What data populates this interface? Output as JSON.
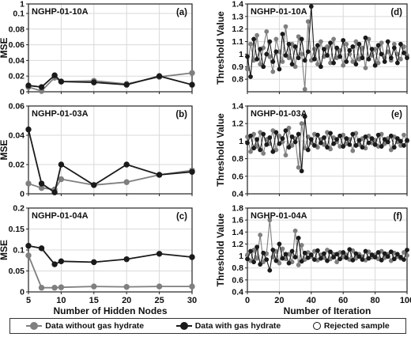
{
  "colors": {
    "without": "#7f7f7f",
    "with": "#1a1a1a",
    "axis": "#222222",
    "grid": "#d9d9d9"
  },
  "legend": {
    "without_label": "Data without gas hydrate",
    "with_label": "Data with gas hydrate",
    "rejected_label": "Rejected sample"
  },
  "chart_data": [
    {
      "id": "a",
      "type": "line",
      "tag": "(a)",
      "site": "NGHP-01-10A",
      "ylabel": "MSE",
      "xlabel": "",
      "xlim": [
        5,
        30
      ],
      "ylim": [
        0,
        1
      ],
      "xticks": [
        5,
        10,
        15,
        20,
        25,
        30
      ],
      "xticklabels": [],
      "yticks": [
        0,
        0.02,
        0.04,
        0.06,
        0.08,
        0.1,
        1
      ],
      "yticklabels": [
        "0",
        "0.02",
        "0.04",
        "0.06",
        "0.08",
        "0.1",
        "1"
      ],
      "grid": true,
      "x": [
        5,
        7,
        9,
        10,
        15,
        20,
        25,
        30
      ],
      "series": [
        {
          "key": "without",
          "values": [
            0.006,
            0.001,
            0.018,
            0.013,
            0.014,
            0.01,
            0.019,
            0.024
          ]
        },
        {
          "key": "with",
          "values": [
            0.008,
            0.006,
            0.021,
            0.013,
            0.012,
            0.009,
            0.02,
            0.009
          ]
        }
      ]
    },
    {
      "id": "b",
      "type": "line",
      "tag": "(b)",
      "site": "NGHP-01-03A",
      "ylabel": "MSE",
      "xlabel": "",
      "xlim": [
        5,
        30
      ],
      "ylim": [
        0,
        0.06
      ],
      "xticks": [
        5,
        10,
        15,
        20,
        25,
        30
      ],
      "xticklabels": [],
      "yticks": [
        0,
        0.02,
        0.04,
        0.06
      ],
      "yticklabels": [
        "0",
        "0.02",
        "0.04",
        "0.06"
      ],
      "grid": true,
      "x": [
        5,
        7,
        9,
        10,
        15,
        20,
        25,
        30
      ],
      "series": [
        {
          "key": "without",
          "values": [
            0.007,
            0.004,
            0.003,
            0.01,
            0.006,
            0.008,
            0.013,
            0.016
          ]
        },
        {
          "key": "with",
          "values": [
            0.044,
            0.007,
            0.001,
            0.02,
            0.006,
            0.02,
            0.013,
            0.015
          ]
        }
      ]
    },
    {
      "id": "c",
      "type": "line",
      "tag": "(c)",
      "site": "NGHP-01-04A",
      "ylabel": "MSE",
      "xlabel": "Number of Hidden Nodes",
      "xlim": [
        5,
        30
      ],
      "ylim": [
        0,
        0.2
      ],
      "xticks": [
        5,
        10,
        15,
        20,
        25,
        30
      ],
      "xticklabels": [
        "5",
        "10",
        "15",
        "20",
        "25",
        "30"
      ],
      "yticks": [
        0,
        0.05,
        0.1,
        0.15,
        0.2
      ],
      "yticklabels": [
        "0",
        "0.05",
        "0.1",
        "0.15",
        "0.2"
      ],
      "grid": true,
      "x": [
        5,
        7,
        9,
        10,
        15,
        20,
        25,
        30
      ],
      "series": [
        {
          "key": "without",
          "values": [
            0.087,
            0.01,
            0.01,
            0.011,
            0.013,
            0.012,
            0.013,
            0.013
          ]
        },
        {
          "key": "with",
          "values": [
            0.11,
            0.104,
            0.066,
            0.073,
            0.071,
            0.078,
            0.091,
            0.083
          ]
        }
      ]
    },
    {
      "id": "d",
      "type": "line",
      "tag": "(d)",
      "site": "NGHP-01-10A",
      "ylabel": "Threshold Value",
      "xlabel": "",
      "xlim": [
        0,
        100
      ],
      "ylim": [
        0.7,
        1.4
      ],
      "xticks": [
        0,
        20,
        40,
        60,
        80,
        100
      ],
      "xticklabels": [],
      "yticks": [
        0.8,
        0.9,
        1.0,
        1.1,
        1.2,
        1.3,
        1.4
      ],
      "yticklabels": [
        "0.8",
        "0.9",
        "1",
        "1.1",
        "1.2",
        "1.3",
        "1.4"
      ],
      "grid": true,
      "x": [
        0,
        2,
        4,
        6,
        8,
        10,
        12,
        14,
        16,
        18,
        20,
        22,
        24,
        26,
        28,
        30,
        32,
        34,
        36,
        38,
        40,
        42,
        44,
        46,
        48,
        50,
        52,
        54,
        56,
        58,
        60,
        62,
        64,
        66,
        68,
        70,
        72,
        74,
        76,
        78,
        80,
        82,
        84,
        86,
        88,
        90,
        92,
        94,
        96,
        98,
        100
      ],
      "series": [
        {
          "key": "without",
          "values": [
            0.88,
            1.08,
            0.95,
            1.15,
            0.92,
            1.05,
            1.18,
            0.98,
            0.86,
            1.12,
            1.02,
            0.94,
            1.22,
            0.97,
            1.08,
            0.9,
            1.14,
            1.0,
            0.72,
            1.26,
            0.95,
            1.04,
            0.92,
            1.1,
            0.98,
            1.06,
            0.93,
            1.12,
            0.97,
            1.03,
            0.91,
            1.08,
            1.0,
            0.94,
            1.1,
            0.96,
            1.05,
            0.89,
            1.12,
            0.99,
            1.04,
            0.93,
            1.09,
            0.97,
            1.02,
            0.95,
            1.08,
            1.0,
            0.96,
            1.06,
            0.99
          ]
        },
        {
          "key": "with",
          "values": [
            0.98,
            0.82,
            1.12,
            0.96,
            1.04,
            0.9,
            1.0,
            1.1,
            0.94,
            1.02,
            0.88,
            1.16,
            0.99,
            1.08,
            0.92,
            1.06,
            0.97,
            1.12,
            0.95,
            1.02,
            1.38,
            0.96,
            1.07,
            0.9,
            1.04,
            0.99,
            1.09,
            0.93,
            1.05,
            0.98,
            1.11,
            0.94,
            1.03,
            1.06,
            0.92,
            1.08,
            0.97,
            1.13,
            0.96,
            1.04,
            0.91,
            1.07,
            1.0,
            0.94,
            1.1,
            0.97,
            1.05,
            0.93,
            1.08,
            1.01,
            0.97
          ]
        }
      ]
    },
    {
      "id": "e",
      "type": "line",
      "tag": "(e)",
      "site": "NGHP-01-03A",
      "ylabel": "Threshold Value",
      "xlabel": "",
      "xlim": [
        0,
        100
      ],
      "ylim": [
        0.4,
        1.4
      ],
      "xticks": [
        0,
        20,
        40,
        60,
        80,
        100
      ],
      "xticklabels": [],
      "yticks": [
        0.4,
        0.6,
        0.8,
        1.0,
        1.2,
        1.4
      ],
      "yticklabels": [
        "0.4",
        "0.6",
        "0.8",
        "1",
        "1.2",
        "1.4"
      ],
      "grid": true,
      "x": [
        0,
        2,
        4,
        6,
        8,
        10,
        12,
        14,
        16,
        18,
        20,
        22,
        24,
        26,
        28,
        30,
        32,
        34,
        36,
        38,
        40,
        42,
        44,
        46,
        48,
        50,
        52,
        54,
        56,
        58,
        60,
        62,
        64,
        66,
        68,
        70,
        72,
        74,
        76,
        78,
        80,
        82,
        84,
        86,
        88,
        90,
        92,
        94,
        96,
        98,
        100
      ],
      "series": [
        {
          "key": "without",
          "values": [
            1.05,
            0.88,
            1.08,
            0.94,
            1.1,
            0.86,
            1.02,
            0.97,
            1.12,
            0.9,
            1.06,
            0.99,
            0.84,
            1.15,
            0.95,
            1.03,
            0.7,
            1.2,
            0.92,
            1.05,
            0.98,
            1.08,
            0.93,
            1.02,
            0.96,
            1.1,
            0.91,
            1.04,
            0.99,
            0.94,
            1.07,
            0.97,
            1.02,
            0.89,
            1.09,
            0.96,
            1.03,
            0.92,
            1.06,
            0.98,
            1.01,
            0.94,
            1.08,
            0.97,
            1.03,
            0.9,
            1.05,
            0.99,
            0.95,
            1.07,
            1.0
          ]
        },
        {
          "key": "with",
          "values": [
            0.98,
            1.06,
            0.92,
            1.02,
            0.9,
            1.08,
            0.96,
            1.04,
            0.88,
            1.1,
            0.97,
            1.03,
            1.12,
            0.93,
            1.05,
            0.99,
            1.08,
            0.66,
            1.28,
            0.9,
            1.02,
            0.95,
            1.07,
            0.98,
            1.04,
            0.93,
            1.09,
            0.97,
            1.02,
            1.06,
            0.94,
            1.03,
            0.96,
            1.08,
            0.95,
            1.01,
            0.93,
            1.05,
            0.98,
            1.03,
            0.96,
            1.07,
            0.94,
            1.02,
            0.99,
            1.06,
            0.93,
            1.03,
            1.0,
            0.95,
            1.01
          ]
        }
      ]
    },
    {
      "id": "f",
      "type": "line",
      "tag": "(f)",
      "site": "NGHP-01-04A",
      "ylabel": "Threshold Value",
      "xlabel": "Number of Iteration",
      "xlim": [
        0,
        100
      ],
      "ylim": [
        0.4,
        1.8
      ],
      "xticks": [
        0,
        20,
        40,
        60,
        80,
        100
      ],
      "xticklabels": [
        "0",
        "20",
        "40",
        "60",
        "80",
        "100"
      ],
      "yticks": [
        0.4,
        0.6,
        0.8,
        1.0,
        1.2,
        1.4,
        1.6,
        1.8
      ],
      "yticklabels": [
        "0.4",
        "0.6",
        "0.8",
        "1",
        "1.2",
        "1.4",
        "1.6",
        "1.8"
      ],
      "grid": true,
      "x": [
        0,
        2,
        4,
        6,
        8,
        10,
        12,
        14,
        16,
        18,
        20,
        22,
        24,
        26,
        28,
        30,
        32,
        34,
        36,
        38,
        40,
        42,
        44,
        46,
        48,
        50,
        52,
        54,
        56,
        58,
        60,
        62,
        64,
        66,
        68,
        70,
        72,
        74,
        76,
        78,
        80,
        82,
        84,
        86,
        88,
        90,
        92,
        94,
        96,
        98,
        100
      ],
      "series": [
        {
          "key": "without",
          "values": [
            1.02,
            0.92,
            1.1,
            0.96,
            1.35,
            0.9,
            1.04,
            1.6,
            0.98,
            1.08,
            0.88,
            1.12,
            0.95,
            1.03,
            0.9,
            1.42,
            0.85,
            1.18,
            0.94,
            1.06,
            0.99,
            1.08,
            0.93,
            1.02,
            0.97,
            1.1,
            0.95,
            1.03,
            0.9,
            1.06,
            0.98,
            1.02,
            0.94,
            1.09,
            0.96,
            1.03,
            0.99,
            0.93,
            1.07,
            0.98,
            1.02,
            0.95,
            1.08,
            0.97,
            1.03,
            0.92,
            1.05,
            0.99,
            0.96,
            1.06,
            1.01
          ]
        },
        {
          "key": "with",
          "values": [
            0.95,
            1.08,
            0.9,
            1.15,
            0.86,
            1.05,
            0.94,
            0.76,
            1.1,
            0.92,
            1.2,
            0.96,
            1.03,
            0.88,
            1.08,
            0.98,
            1.3,
            0.91,
            1.05,
            0.97,
            1.02,
            0.94,
            1.09,
            0.96,
            1.04,
            0.92,
            1.07,
            0.98,
            1.03,
            0.95,
            1.06,
            0.97,
            1.11,
            0.93,
            1.04,
            0.99,
            0.94,
            1.08,
            0.96,
            1.02,
            0.98,
            1.06,
            0.93,
            1.04,
            0.99,
            1.07,
            0.95,
            1.03,
            0.98,
            0.94,
            1.1
          ]
        }
      ]
    }
  ]
}
